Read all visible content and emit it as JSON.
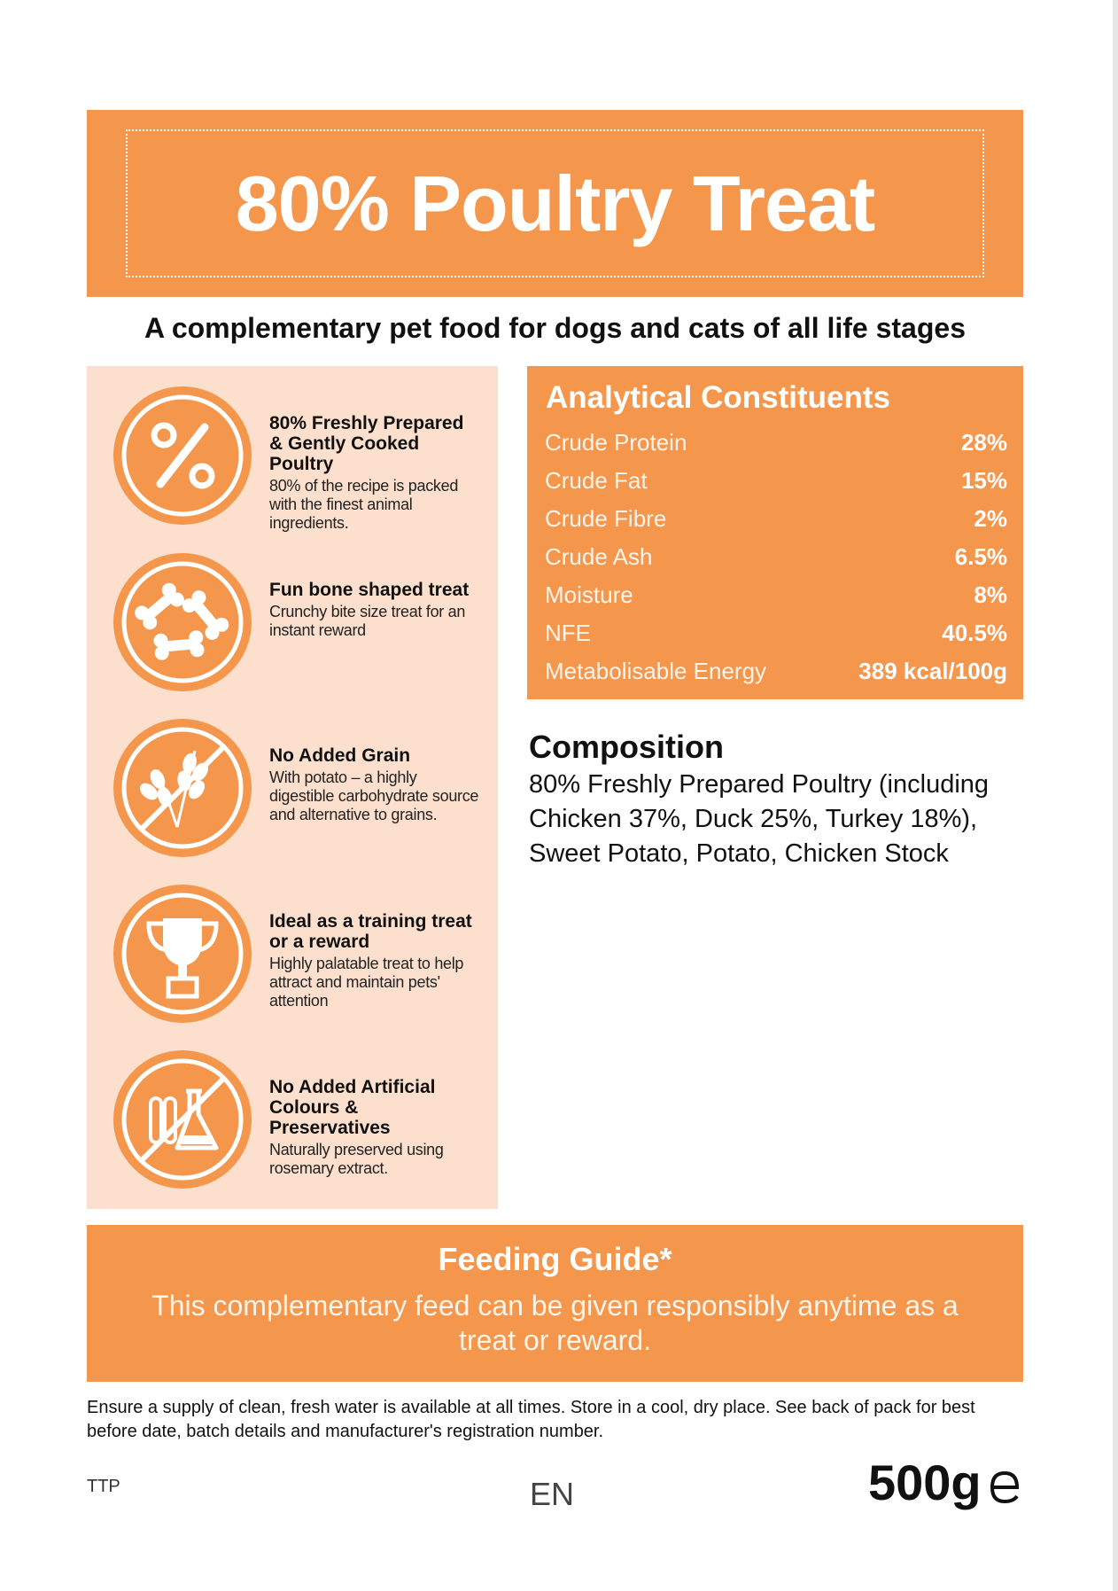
{
  "title": "80% Poultry Treat",
  "subtitle": "A complementary pet food for dogs and cats of all life stages",
  "features": [
    {
      "icon": "percent-icon",
      "title": "80% Freshly Prepared & Gently Cooked Poultry",
      "description": "80% of the recipe is packed with the finest animal ingredients."
    },
    {
      "icon": "bones-icon",
      "title": "Fun bone shaped treat",
      "description": "Crunchy bite size treat for an instant reward"
    },
    {
      "icon": "no-grain-icon",
      "title": "No Added Grain",
      "description": "With potato – a highly digestible carbohydrate source and alternative to grains."
    },
    {
      "icon": "trophy-icon",
      "title": "Ideal as a training treat or a reward",
      "description": "Highly palatable treat to help attract and maintain pets' attention"
    },
    {
      "icon": "no-artificial-icon",
      "title": "No Added Artificial Colours & Preservatives",
      "description": "Naturally preserved using rosemary extract."
    }
  ],
  "analytical": {
    "title": "Analytical Constituents",
    "rows": [
      {
        "label": "Crude Protein",
        "value": "28%"
      },
      {
        "label": "Crude Fat",
        "value": "15%"
      },
      {
        "label": "Crude Fibre",
        "value": "2%"
      },
      {
        "label": "Crude Ash",
        "value": "6.5%"
      },
      {
        "label": "Moisture",
        "value": "8%"
      },
      {
        "label": "NFE",
        "value": "40.5%"
      },
      {
        "label": "Metabolisable Energy",
        "value": "389 kcal/100g"
      }
    ]
  },
  "composition": {
    "title": "Composition",
    "text": "80% Freshly Prepared Poultry (including Chicken 37%, Duck 25%, Turkey 18%), Sweet Potato, Potato, Chicken Stock"
  },
  "feeding": {
    "title": "Feeding Guide*",
    "text": "This complementary feed can be given responsibly anytime as a treat or reward."
  },
  "footer": {
    "note": "Ensure a supply of clean, fresh water is available at all times. Store in a cool, dry place. See back of pack for best before date, batch details and manufacturer's registration number.",
    "code": "TTP",
    "language": "EN",
    "weight": "500g"
  },
  "colors": {
    "accent": "#f5964d",
    "panel": "#fce0cd"
  }
}
